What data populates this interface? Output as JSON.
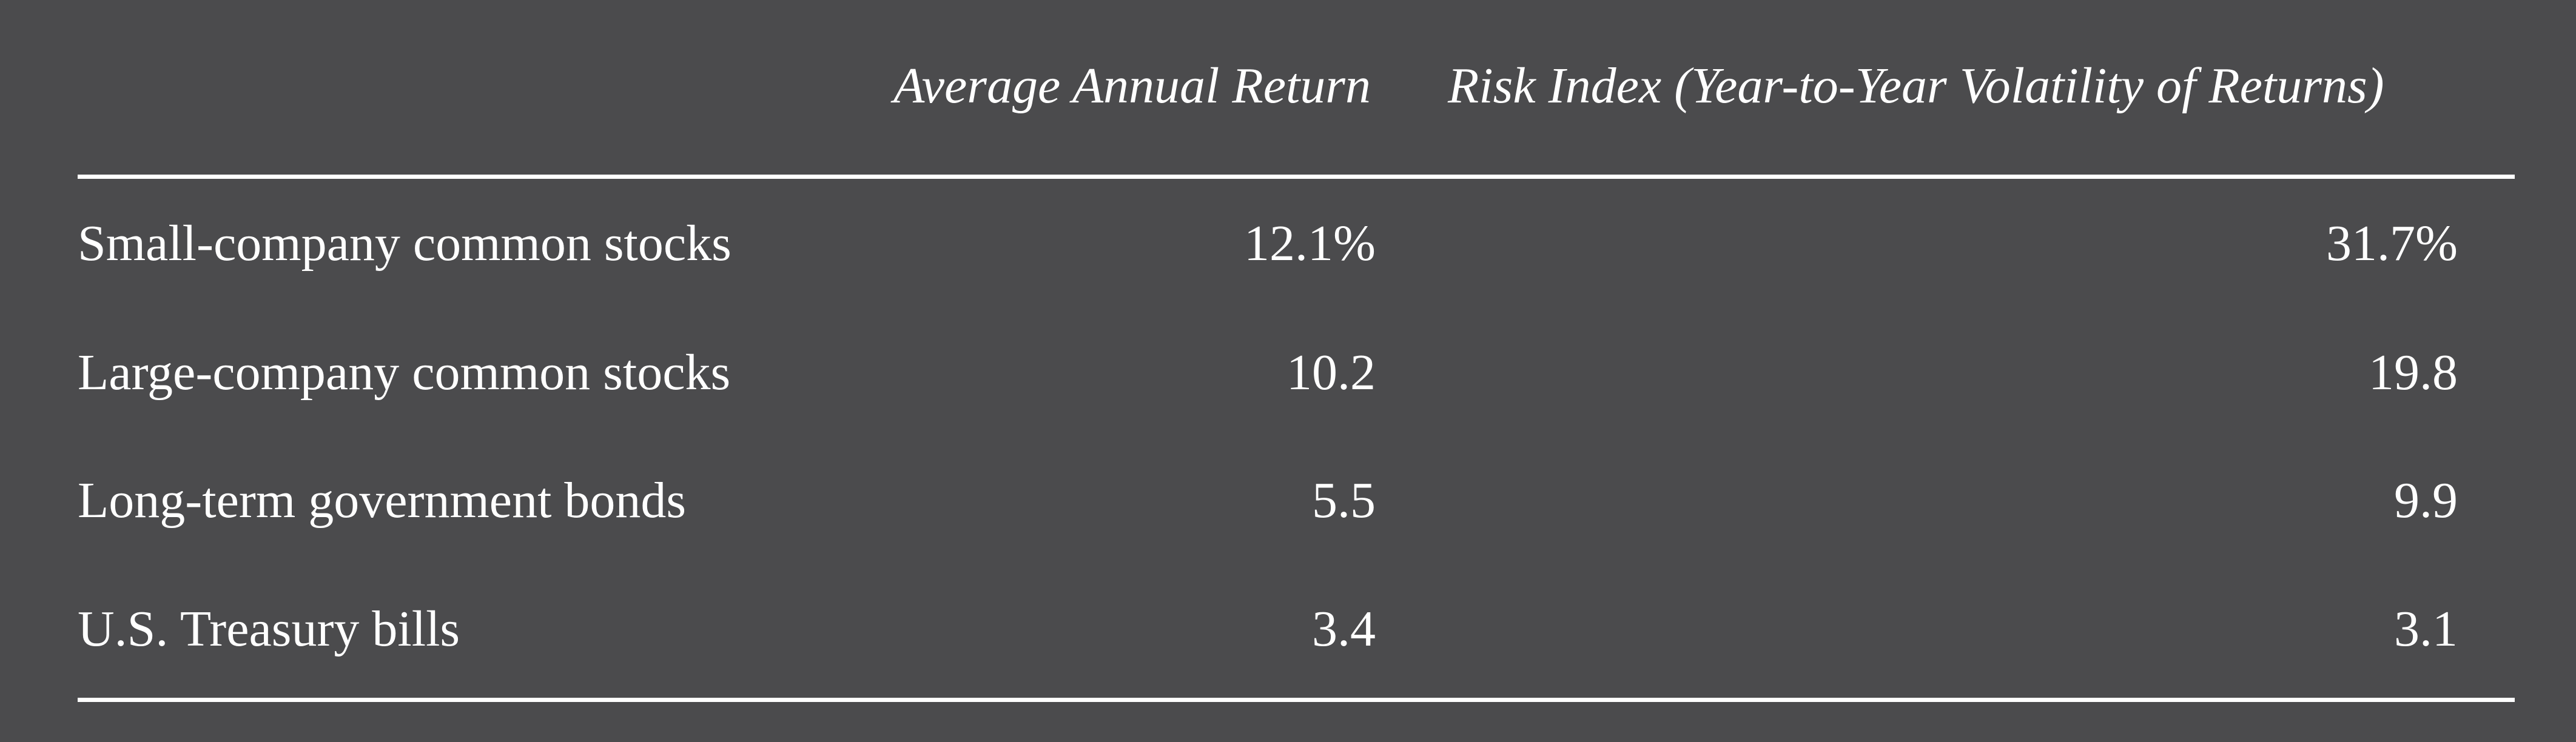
{
  "table": {
    "headers": {
      "category": "",
      "average_annual_return": "Average Annual Return",
      "risk_index": "Risk Index (Year-to-Year Volatility of Returns)"
    },
    "rows": [
      {
        "category": "Small-company common stocks",
        "average_annual_return": "12.1%",
        "risk_index": "31.7%"
      },
      {
        "category": "Large-company common stocks",
        "average_annual_return": "10.2",
        "risk_index": "19.8"
      },
      {
        "category": "Long-term government bonds",
        "average_annual_return": "5.5",
        "risk_index": "9.9"
      },
      {
        "category": "U.S. Treasury bills",
        "average_annual_return": "3.4",
        "risk_index": "3.1"
      }
    ]
  },
  "colors": {
    "background": "#4b4b4d",
    "text": "#ffffff",
    "rules": "#ffffff"
  }
}
